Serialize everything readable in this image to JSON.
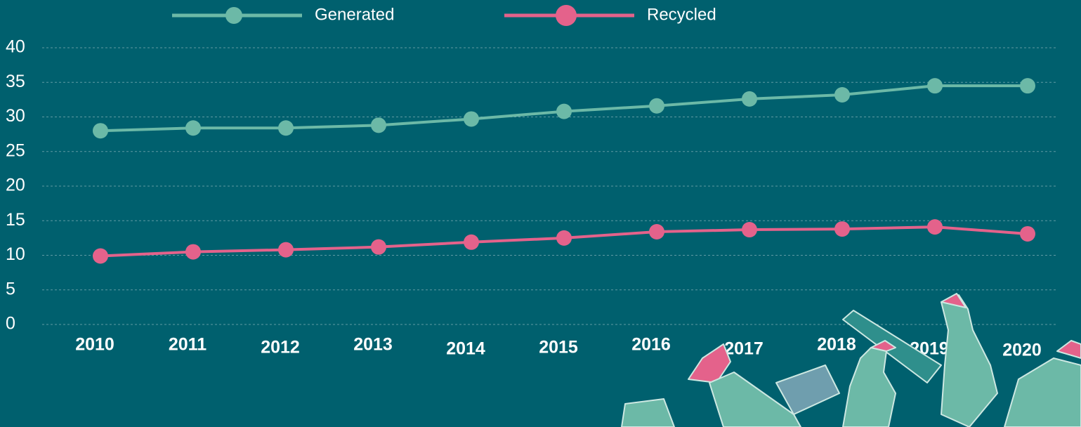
{
  "chart_data": {
    "type": "line",
    "categories": [
      "2010",
      "2011",
      "2012",
      "2013",
      "2014",
      "2015",
      "2016",
      "2017",
      "2018",
      "2019",
      "2020"
    ],
    "series": [
      {
        "name": "Generated",
        "color": "#6cb9a7",
        "values": [
          28.0,
          28.4,
          28.4,
          28.8,
          29.7,
          30.8,
          31.6,
          32.6,
          33.2,
          34.5,
          34.5
        ]
      },
      {
        "name": "Recycled",
        "color": "#e4628b",
        "values": [
          9.9,
          10.5,
          10.8,
          11.2,
          11.9,
          12.5,
          13.4,
          13.7,
          13.8,
          14.1,
          13.1
        ]
      }
    ],
    "ylim": [
      0,
      40
    ],
    "yticks": [
      0,
      5,
      10,
      15,
      20,
      25,
      30,
      35,
      40
    ],
    "grid": true
  }
}
